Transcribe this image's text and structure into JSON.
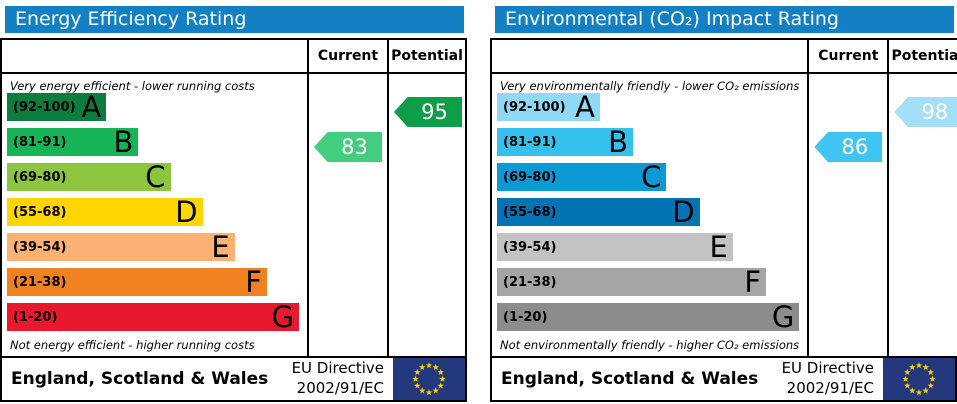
{
  "labels": {
    "current": "Current",
    "potential": "Potential"
  },
  "footer": {
    "region": "England, Scotland & Wales",
    "directive_line1": "EU Directive",
    "directive_line2": "2002/91/EC"
  },
  "eu_flag": {
    "background": "#24387d",
    "stars": "#ffcc00"
  },
  "chart_data": [
    {
      "type": "bar",
      "title": "Energy Efficiency Rating",
      "title_bg": "#1380c4",
      "top_note": "Very energy efficient - lower running costs",
      "bottom_note": "Not energy efficient - higher running costs",
      "categories": [
        "A",
        "B",
        "C",
        "D",
        "E",
        "F",
        "G"
      ],
      "ranges": [
        "(92-100)",
        "(81-91)",
        "(69-80)",
        "(55-68)",
        "(39-54)",
        "(21-38)",
        "(1-20)"
      ],
      "band_widths_pct": [
        34,
        45,
        56,
        67,
        78,
        89,
        100
      ],
      "band_colors": [
        "#0c7d3c",
        "#17b457",
        "#8cc63f",
        "#ffd500",
        "#fbb173",
        "#ef8120",
        "#e8192c"
      ],
      "scale_range": [
        1,
        100
      ],
      "current": {
        "value": 83,
        "band": "B",
        "band_index": 1,
        "color": "#43cd7e"
      },
      "potential": {
        "value": 95,
        "band": "A",
        "band_index": 0,
        "color": "#0d9e47"
      }
    },
    {
      "type": "bar",
      "title": "Environmental (CO₂) Impact Rating",
      "title_bg": "#1380c4",
      "top_note": "Very environmentally friendly - lower CO₂ emissions",
      "bottom_note": "Not environmentally friendly - higher CO₂ emissions",
      "categories": [
        "A",
        "B",
        "C",
        "D",
        "E",
        "F",
        "G"
      ],
      "ranges": [
        "(92-100)",
        "(81-91)",
        "(69-80)",
        "(55-68)",
        "(39-54)",
        "(21-38)",
        "(1-20)"
      ],
      "band_widths_pct": [
        34,
        45,
        56,
        67,
        78,
        89,
        100
      ],
      "band_colors": [
        "#8fd9f4",
        "#36c0ee",
        "#0d99d6",
        "#0473b3",
        "#c3c3c3",
        "#a5a5a5",
        "#8c8c8c"
      ],
      "scale_range": [
        1,
        100
      ],
      "current": {
        "value": 86,
        "band": "B",
        "band_index": 1,
        "color": "#40c5f2"
      },
      "potential": {
        "value": 98,
        "band": "A",
        "band_index": 0,
        "color": "#a4def7"
      }
    }
  ]
}
